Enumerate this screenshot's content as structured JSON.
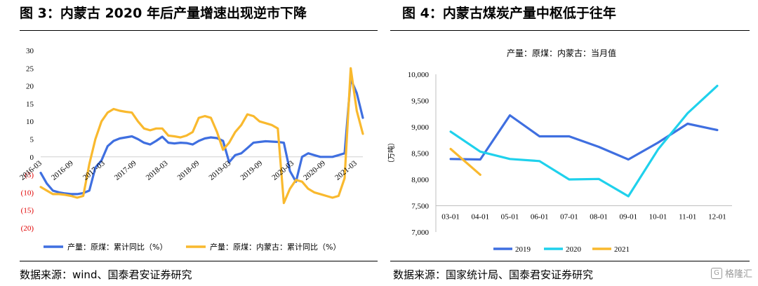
{
  "left": {
    "title": "图 3：内蒙古 2020 年后产量增速出现逆市下降",
    "source": "数据来源：wind、国泰君安证券研究"
  },
  "right": {
    "title": "图 4：内蒙古煤炭产量中枢低于往年",
    "source": "数据来源：国家统计局、国泰君安证券研究"
  },
  "watermark": "格隆汇",
  "colors": {
    "blue": "#3f6fe0",
    "gold": "#f9b92e",
    "cyan": "#1fd1ec",
    "red_tick": "#e00000"
  },
  "chart_data": [
    {
      "type": "line",
      "title": "",
      "ylim": [
        -20,
        30
      ],
      "y_ticks": [
        "30",
        "25",
        "20",
        "15",
        "10",
        "5",
        "0",
        "(5)",
        "(10)",
        "(15)",
        "(20)"
      ],
      "x_tick_labels": [
        "2016-03",
        "2016-09",
        "2017-03",
        "2017-09",
        "2018-03",
        "2018-09",
        "2019-03",
        "2019-09",
        "2020-03",
        "2020-09",
        "2021-03"
      ],
      "legend_position": "bottom",
      "series": [
        {
          "name": "产量：原煤：累计同比（%）",
          "color": "#3f6fe0",
          "values": [
            -4.5,
            -7.5,
            -9.5,
            -10,
            -10.3,
            -10.5,
            -10.5,
            -10.2,
            -9.5,
            -3,
            -1,
            3,
            4.5,
            5.2,
            5.5,
            5.8,
            5,
            4,
            3.5,
            4.5,
            5.7,
            4,
            3.8,
            4,
            3.9,
            3.5,
            4.5,
            5.2,
            5.5,
            5.3,
            4.5,
            -1.5,
            0.5,
            1,
            2.5,
            4,
            4.2,
            4.4,
            4.3,
            4.2,
            4,
            -4,
            -7,
            0,
            1,
            0.5,
            0,
            0,
            0,
            0.5,
            1,
            22,
            18,
            11
          ]
        },
        {
          "name": "产量：原煤：内蒙古：累计同比（%）",
          "color": "#f9b92e",
          "values": [
            -8.5,
            -9.5,
            -10.5,
            -10.5,
            -10.7,
            -11,
            -11.5,
            -11,
            -2,
            5,
            10,
            12.5,
            13.5,
            13,
            12.7,
            12.5,
            10,
            8,
            7.5,
            8,
            8,
            6,
            5.8,
            5.5,
            6,
            7,
            11,
            11.5,
            11,
            7,
            2,
            4,
            7,
            9,
            12,
            11.5,
            10,
            9.5,
            9,
            8,
            -13,
            -9,
            -6.5,
            -7,
            -9,
            -10,
            -10.5,
            -11,
            -11.5,
            -11,
            -6,
            25,
            13,
            6.5
          ]
        }
      ]
    },
    {
      "type": "line",
      "title": "产量：原煤：内蒙古：当月值",
      "ylabel": "（万吨）",
      "ylim": [
        7000,
        10000
      ],
      "y_ticks": [
        "10,000",
        "9,500",
        "9,000",
        "8,500",
        "8,000",
        "7,500",
        "7,000"
      ],
      "categories": [
        "03-01",
        "04-01",
        "05-01",
        "06-01",
        "07-01",
        "08-01",
        "09-01",
        "10-01",
        "11-01",
        "12-01"
      ],
      "legend_position": "bottom",
      "series": [
        {
          "name": "2019",
          "color": "#3f6fe0",
          "values": [
            8390,
            8380,
            9220,
            8820,
            8820,
            8620,
            8380,
            8700,
            9060,
            8940
          ]
        },
        {
          "name": "2020",
          "color": "#1fd1ec",
          "values": [
            8910,
            8530,
            8390,
            8350,
            8000,
            8010,
            7680,
            8570,
            9260,
            9780
          ]
        },
        {
          "name": "2021",
          "color": "#f9b92e",
          "values": [
            8580,
            8090,
            null,
            null,
            null,
            null,
            null,
            null,
            null,
            null
          ]
        }
      ]
    }
  ]
}
